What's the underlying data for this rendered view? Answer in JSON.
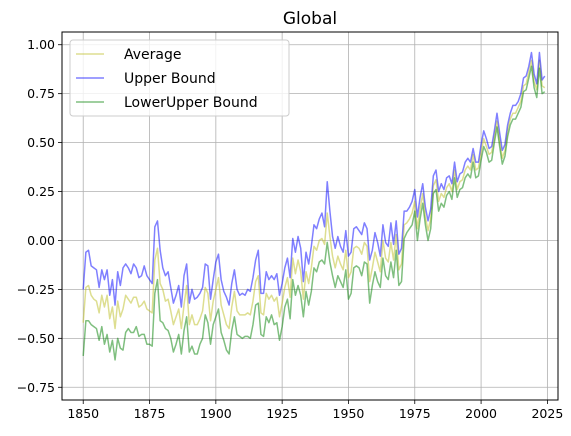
{
  "chart_data": {
    "type": "line",
    "title": "Global",
    "xlabel": "",
    "ylabel": "",
    "xlim": [
      1842,
      2029
    ],
    "ylim": [
      -0.815,
      1.065
    ],
    "xticks": [
      1850,
      1875,
      1900,
      1925,
      1950,
      1975,
      2000,
      2025
    ],
    "xtick_labels": [
      "1850",
      "1875",
      "1900",
      "1925",
      "1950",
      "1975",
      "2000",
      "2025"
    ],
    "yticks": [
      -0.75,
      -0.5,
      -0.25,
      0.0,
      0.25,
      0.5,
      0.75,
      1.0
    ],
    "ytick_labels": [
      "−0.75",
      "−0.50",
      "−0.25",
      "0.00",
      "0.25",
      "0.50",
      "0.75",
      "1.00"
    ],
    "grid": true,
    "legend_position": "upper-left",
    "x_start": 1850,
    "x_end": 2022,
    "series": [
      {
        "name": "Average",
        "color": "#bcbd22",
        "values": [
          -0.42,
          -0.24,
          -0.23,
          -0.28,
          -0.3,
          -0.31,
          -0.37,
          -0.28,
          -0.34,
          -0.28,
          -0.4,
          -0.34,
          -0.45,
          -0.31,
          -0.39,
          -0.35,
          -0.28,
          -0.3,
          -0.32,
          -0.29,
          -0.29,
          -0.34,
          -0.33,
          -0.31,
          -0.35,
          -0.36,
          -0.37,
          -0.1,
          -0.04,
          -0.22,
          -0.25,
          -0.31,
          -0.3,
          -0.36,
          -0.43,
          -0.39,
          -0.35,
          -0.45,
          -0.33,
          -0.23,
          -0.43,
          -0.38,
          -0.43,
          -0.43,
          -0.4,
          -0.36,
          -0.24,
          -0.27,
          -0.41,
          -0.31,
          -0.25,
          -0.19,
          -0.33,
          -0.38,
          -0.43,
          -0.45,
          -0.34,
          -0.26,
          -0.36,
          -0.38,
          -0.38,
          -0.38,
          -0.37,
          -0.38,
          -0.31,
          -0.21,
          -0.18,
          -0.37,
          -0.38,
          -0.27,
          -0.3,
          -0.28,
          -0.31,
          -0.29,
          -0.39,
          -0.32,
          -0.24,
          -0.19,
          -0.29,
          -0.09,
          -0.17,
          -0.1,
          -0.16,
          -0.3,
          -0.16,
          -0.22,
          -0.14,
          -0.03,
          -0.05,
          0.0,
          0.01,
          -0.02,
          0.14,
          0.02,
          -0.08,
          -0.14,
          -0.08,
          -0.12,
          -0.15,
          -0.05,
          -0.19,
          -0.16,
          -0.04,
          -0.03,
          -0.04,
          -0.07,
          -0.01,
          -0.03,
          -0.21,
          -0.14,
          -0.06,
          -0.11,
          -0.16,
          0.0,
          -0.09,
          -0.11,
          -0.01,
          -0.1,
          0.03,
          -0.15,
          -0.12,
          0.08,
          0.09,
          0.11,
          0.14,
          0.2,
          0.06,
          0.16,
          0.24,
          0.12,
          0.05,
          0.11,
          0.28,
          0.31,
          0.2,
          0.24,
          0.22,
          0.27,
          0.29,
          0.25,
          0.36,
          0.26,
          0.3,
          0.31,
          0.36,
          0.38,
          0.36,
          0.44,
          0.36,
          0.37,
          0.45,
          0.52,
          0.48,
          0.44,
          0.45,
          0.53,
          0.61,
          0.51,
          0.42,
          0.46,
          0.56,
          0.62,
          0.65,
          0.65,
          0.68,
          0.71,
          0.79,
          0.8,
          0.86,
          0.92,
          0.81,
          0.77,
          0.92,
          0.79,
          0.78
        ]
      },
      {
        "name": "Upper Bound",
        "color": "#0000ff",
        "values": [
          -0.25,
          -0.06,
          -0.05,
          -0.13,
          -0.14,
          -0.15,
          -0.24,
          -0.15,
          -0.2,
          -0.15,
          -0.28,
          -0.2,
          -0.33,
          -0.16,
          -0.23,
          -0.14,
          -0.12,
          -0.14,
          -0.17,
          -0.12,
          -0.14,
          -0.19,
          -0.18,
          -0.13,
          -0.18,
          -0.2,
          -0.22,
          0.07,
          0.1,
          -0.05,
          -0.14,
          -0.18,
          -0.16,
          -0.24,
          -0.32,
          -0.28,
          -0.23,
          -0.34,
          -0.18,
          -0.12,
          -0.32,
          -0.25,
          -0.3,
          -0.29,
          -0.27,
          -0.24,
          -0.12,
          -0.13,
          -0.3,
          -0.2,
          -0.11,
          -0.07,
          -0.2,
          -0.26,
          -0.29,
          -0.33,
          -0.22,
          -0.15,
          -0.25,
          -0.28,
          -0.27,
          -0.28,
          -0.25,
          -0.26,
          -0.19,
          -0.1,
          -0.05,
          -0.27,
          -0.27,
          -0.16,
          -0.2,
          -0.18,
          -0.2,
          -0.17,
          -0.28,
          -0.22,
          -0.14,
          -0.09,
          -0.19,
          0.01,
          -0.06,
          0.02,
          -0.04,
          -0.21,
          -0.06,
          -0.12,
          -0.03,
          0.08,
          0.06,
          0.11,
          0.14,
          0.07,
          0.3,
          0.15,
          0.02,
          -0.04,
          0.02,
          -0.03,
          -0.06,
          0.05,
          -0.08,
          -0.06,
          0.06,
          0.07,
          0.05,
          0.03,
          0.09,
          0.06,
          -0.1,
          -0.05,
          0.04,
          -0.01,
          -0.08,
          0.08,
          -0.01,
          -0.03,
          0.09,
          -0.02,
          0.1,
          -0.07,
          -0.04,
          0.15,
          0.15,
          0.17,
          0.2,
          0.26,
          0.12,
          0.22,
          0.29,
          0.17,
          0.1,
          0.16,
          0.33,
          0.36,
          0.25,
          0.29,
          0.26,
          0.32,
          0.33,
          0.29,
          0.4,
          0.3,
          0.34,
          0.35,
          0.4,
          0.42,
          0.4,
          0.47,
          0.4,
          0.4,
          0.49,
          0.56,
          0.52,
          0.47,
          0.48,
          0.56,
          0.65,
          0.55,
          0.46,
          0.49,
          0.59,
          0.65,
          0.69,
          0.69,
          0.71,
          0.75,
          0.83,
          0.84,
          0.89,
          0.96,
          0.85,
          0.8,
          0.96,
          0.82,
          0.84
        ]
      },
      {
        "name": "LowerUpper Bound",
        "color": "#008000",
        "values": [
          -0.59,
          -0.41,
          -0.41,
          -0.43,
          -0.44,
          -0.45,
          -0.51,
          -0.44,
          -0.53,
          -0.48,
          -0.57,
          -0.51,
          -0.61,
          -0.5,
          -0.55,
          -0.56,
          -0.47,
          -0.45,
          -0.47,
          -0.47,
          -0.44,
          -0.49,
          -0.48,
          -0.48,
          -0.53,
          -0.53,
          -0.54,
          -0.27,
          -0.2,
          -0.41,
          -0.42,
          -0.45,
          -0.46,
          -0.5,
          -0.57,
          -0.53,
          -0.48,
          -0.58,
          -0.46,
          -0.39,
          -0.57,
          -0.54,
          -0.58,
          -0.58,
          -0.53,
          -0.5,
          -0.38,
          -0.42,
          -0.53,
          -0.43,
          -0.39,
          -0.35,
          -0.47,
          -0.51,
          -0.56,
          -0.58,
          -0.46,
          -0.39,
          -0.48,
          -0.49,
          -0.5,
          -0.49,
          -0.49,
          -0.5,
          -0.43,
          -0.33,
          -0.32,
          -0.48,
          -0.49,
          -0.39,
          -0.42,
          -0.38,
          -0.43,
          -0.42,
          -0.51,
          -0.44,
          -0.34,
          -0.3,
          -0.4,
          -0.2,
          -0.28,
          -0.23,
          -0.28,
          -0.39,
          -0.26,
          -0.33,
          -0.26,
          -0.14,
          -0.16,
          -0.11,
          -0.1,
          -0.12,
          -0.01,
          -0.11,
          -0.18,
          -0.24,
          -0.18,
          -0.21,
          -0.24,
          -0.15,
          -0.3,
          -0.27,
          -0.14,
          -0.13,
          -0.14,
          -0.18,
          -0.11,
          -0.12,
          -0.32,
          -0.23,
          -0.16,
          -0.21,
          -0.24,
          -0.09,
          -0.18,
          -0.2,
          -0.11,
          -0.19,
          -0.05,
          -0.23,
          -0.21,
          0.01,
          0.04,
          0.06,
          0.08,
          0.15,
          0.0,
          0.11,
          0.19,
          0.08,
          0.0,
          0.06,
          0.24,
          0.26,
          0.15,
          0.19,
          0.17,
          0.23,
          0.25,
          0.21,
          0.32,
          0.22,
          0.26,
          0.27,
          0.32,
          0.34,
          0.32,
          0.4,
          0.32,
          0.33,
          0.41,
          0.48,
          0.45,
          0.4,
          0.41,
          0.5,
          0.58,
          0.48,
          0.39,
          0.43,
          0.53,
          0.59,
          0.62,
          0.62,
          0.65,
          0.68,
          0.76,
          0.77,
          0.83,
          0.89,
          0.78,
          0.73,
          0.88,
          0.75,
          0.76
        ]
      }
    ]
  }
}
